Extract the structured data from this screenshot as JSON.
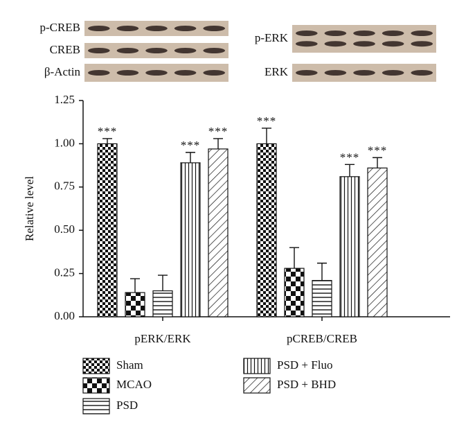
{
  "chart_data": {
    "type": "bar",
    "blots": {
      "left": [
        "p-CREB",
        "CREB",
        "β-Actin"
      ],
      "right": [
        "p-ERK",
        "ERK"
      ]
    },
    "y_label": "Relative level",
    "categories": [
      "pERK/ERK",
      "pCREB/CREB"
    ],
    "ylim": [
      0,
      1.25
    ],
    "yticks": [
      {
        "value": 0,
        "label": "0.00"
      },
      0.25,
      {
        "value": 0.5,
        "label": "0.50"
      },
      0.75,
      {
        "value": 1,
        "label": "1.00"
      },
      1.25
    ],
    "series": [
      {
        "name": "Sham",
        "pattern": "fine-checker",
        "values": [
          1.0,
          1.0
        ],
        "errors": [
          0.03,
          0.09
        ],
        "value_labels": [
          "***",
          "***"
        ]
      },
      {
        "name": "MCAO",
        "pattern": "coarse-checker",
        "values": [
          0.14,
          0.28
        ],
        "errors": [
          0.08,
          0.12
        ]
      },
      {
        "name": "PSD",
        "pattern": "horizontal",
        "values": [
          0.15,
          0.21
        ],
        "errors": [
          0.09,
          0.1
        ]
      },
      {
        "name": "PSD + Fluo",
        "pattern": "vertical",
        "values": [
          0.89,
          0.81
        ],
        "errors": [
          0.06,
          0.07
        ],
        "value_labels": [
          "***",
          "***"
        ]
      },
      {
        "name": "PSD + BHD",
        "pattern": "diagonal",
        "values": [
          0.97,
          0.86
        ],
        "errors": [
          0.06,
          0.06
        ],
        "value_labels": [
          "***",
          "***"
        ]
      }
    ]
  }
}
